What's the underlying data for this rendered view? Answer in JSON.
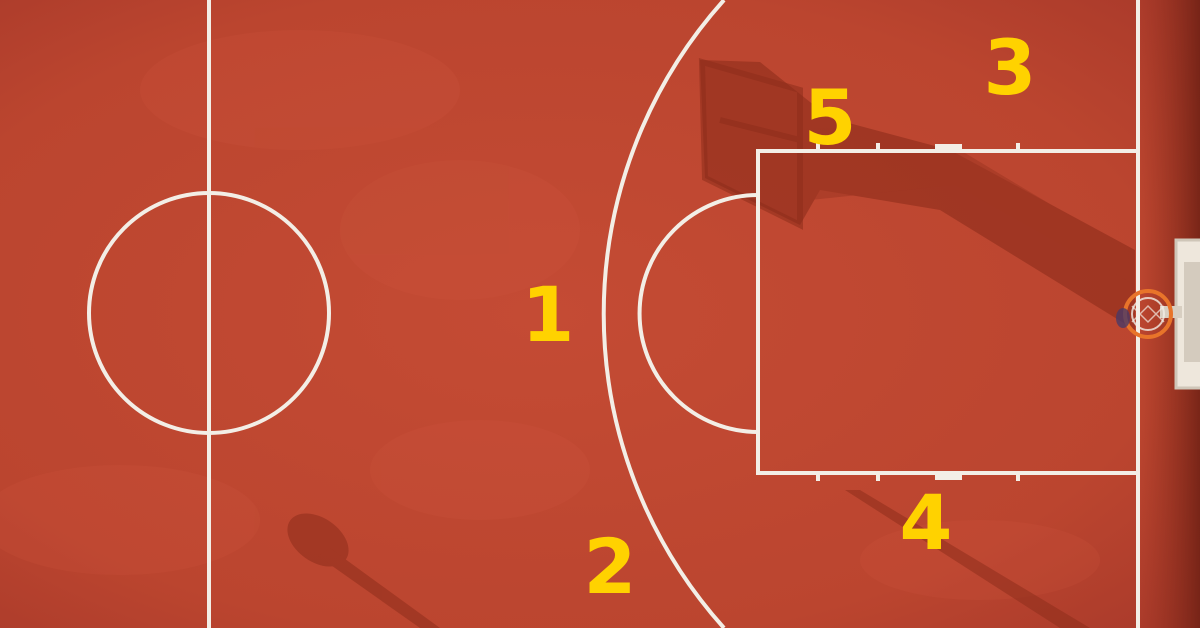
{
  "photo": {
    "subject": "aerial-basketball-court",
    "colors": {
      "court": "#bf4630",
      "court_dark": "#a93a26",
      "lines": "#f3eee6",
      "labels": "#ffd200",
      "shadow": "#8e2d1b",
      "rim": "#e8742a"
    }
  },
  "labels": [
    "1",
    "2",
    "3",
    "4",
    "5"
  ]
}
